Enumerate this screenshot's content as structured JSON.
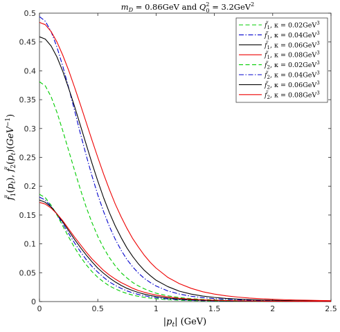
{
  "chart_data": {
    "type": "line",
    "title": "m_D = 0.86GeV and Q_0^2 = 3.2GeV^2",
    "xlabel": "|p_t| (GeV)",
    "ylabel": "f̃_1(p_t), f̃_2(p_t)(GeV^-1)",
    "xlim": [
      0,
      2.5
    ],
    "ylim": [
      0,
      0.5
    ],
    "xticks": [
      0,
      0.5,
      1,
      1.5,
      2,
      2.5
    ],
    "xtick_labels": [
      "0",
      "0.5",
      "1",
      "1.5",
      "2",
      "2.5"
    ],
    "yticks": [
      0,
      0.05,
      0.1,
      0.15,
      0.2,
      0.25,
      0.3,
      0.35,
      0.4,
      0.45,
      0.5
    ],
    "ytick_labels": [
      "0",
      "0.05",
      "0.1",
      "0.15",
      "0.2",
      "0.25",
      "0.3",
      "0.35",
      "0.4",
      "0.45",
      "0.5"
    ],
    "grid": false,
    "legend_position": "top-right",
    "x": [
      0,
      0.05,
      0.1,
      0.15,
      0.2,
      0.25,
      0.3,
      0.35,
      0.4,
      0.45,
      0.5,
      0.55,
      0.6,
      0.65,
      0.7,
      0.75,
      0.8,
      0.85,
      0.9,
      0.95,
      1.0,
      1.1,
      1.2,
      1.3,
      1.4,
      1.5,
      1.6,
      1.7,
      1.8,
      1.9,
      2.0,
      2.1,
      2.2,
      2.3,
      2.4,
      2.5
    ],
    "series": [
      {
        "name": "f̃_1, κ = 0.02GeV^3",
        "color": "#00cc00",
        "dash": "dashed",
        "values": [
          0.381,
          0.374,
          0.355,
          0.328,
          0.296,
          0.262,
          0.228,
          0.195,
          0.164,
          0.137,
          0.113,
          0.093,
          0.076,
          0.062,
          0.05,
          0.041,
          0.033,
          0.027,
          0.022,
          0.018,
          0.0145,
          0.01,
          0.007,
          0.005,
          0.0037,
          0.0028,
          0.0022,
          0.0017,
          0.0014,
          0.0011,
          0.0009,
          0.0008,
          0.0006,
          0.0005,
          0.0004,
          0.0004
        ]
      },
      {
        "name": "f̃_1, κ = 0.04GeV^3",
        "color": "#0000cc",
        "dash": "dashdot",
        "values": [
          0.494,
          0.486,
          0.468,
          0.441,
          0.408,
          0.371,
          0.332,
          0.292,
          0.254,
          0.218,
          0.185,
          0.156,
          0.13,
          0.108,
          0.089,
          0.073,
          0.06,
          0.049,
          0.04,
          0.033,
          0.027,
          0.0185,
          0.013,
          0.0093,
          0.0068,
          0.0051,
          0.0039,
          0.0031,
          0.0024,
          0.0019,
          0.0016,
          0.0013,
          0.0011,
          0.0009,
          0.0008,
          0.0007
        ]
      },
      {
        "name": "f̃_1, κ = 0.06GeV^3",
        "color": "#000000",
        "dash": "solid",
        "values": [
          0.459,
          0.455,
          0.443,
          0.424,
          0.399,
          0.37,
          0.339,
          0.306,
          0.273,
          0.24,
          0.209,
          0.18,
          0.154,
          0.131,
          0.111,
          0.093,
          0.078,
          0.065,
          0.054,
          0.045,
          0.037,
          0.026,
          0.018,
          0.013,
          0.0095,
          0.0072,
          0.0055,
          0.0043,
          0.0034,
          0.0027,
          0.0022,
          0.0018,
          0.0015,
          0.0013,
          0.0011,
          0.0009
        ]
      },
      {
        "name": "f̃_1, κ = 0.08GeV^3",
        "color": "#ee0000",
        "dash": "solid",
        "values": [
          0.484,
          0.48,
          0.468,
          0.45,
          0.427,
          0.401,
          0.372,
          0.342,
          0.311,
          0.28,
          0.25,
          0.221,
          0.194,
          0.169,
          0.147,
          0.127,
          0.109,
          0.094,
          0.08,
          0.068,
          0.058,
          0.042,
          0.031,
          0.023,
          0.017,
          0.013,
          0.01,
          0.0078,
          0.0061,
          0.0049,
          0.004,
          0.0033,
          0.0027,
          0.0023,
          0.0019,
          0.0016
        ]
      },
      {
        "name": "f̃_2, κ = 0.02GeV^3",
        "color": "#00cc00",
        "dash": "dashed",
        "values": [
          0.186,
          0.18,
          0.167,
          0.15,
          0.131,
          0.112,
          0.094,
          0.078,
          0.064,
          0.052,
          0.042,
          0.034,
          0.027,
          0.022,
          0.0175,
          0.014,
          0.0112,
          0.009,
          0.0073,
          0.006,
          0.0049,
          0.0033,
          0.0023,
          0.0016,
          0.0012,
          0.0009,
          0.0007,
          0.0005,
          0.0004,
          0.0003,
          0.0003,
          0.0002,
          0.0002,
          0.0002,
          0.0001,
          0.0001
        ]
      },
      {
        "name": "f̃_2, κ = 0.04GeV^3",
        "color": "#0000cc",
        "dash": "dashdot",
        "values": [
          0.181,
          0.176,
          0.165,
          0.151,
          0.135,
          0.118,
          0.102,
          0.087,
          0.073,
          0.061,
          0.051,
          0.042,
          0.034,
          0.028,
          0.023,
          0.0185,
          0.015,
          0.0122,
          0.01,
          0.0082,
          0.0067,
          0.0046,
          0.0032,
          0.0023,
          0.0017,
          0.0013,
          0.001,
          0.0008,
          0.0006,
          0.0005,
          0.0004,
          0.0003,
          0.0003,
          0.0002,
          0.0002,
          0.0002
        ]
      },
      {
        "name": "f̃_2, κ = 0.06GeV^3",
        "color": "#000000",
        "dash": "solid",
        "values": [
          0.176,
          0.172,
          0.164,
          0.152,
          0.138,
          0.123,
          0.108,
          0.094,
          0.081,
          0.069,
          0.058,
          0.049,
          0.041,
          0.034,
          0.028,
          0.023,
          0.019,
          0.0156,
          0.0128,
          0.0106,
          0.0088,
          0.0061,
          0.0043,
          0.0031,
          0.0023,
          0.0017,
          0.0013,
          0.001,
          0.0008,
          0.0006,
          0.0005,
          0.0004,
          0.0004,
          0.0003,
          0.0003,
          0.0002
        ]
      },
      {
        "name": "f̃_2, κ = 0.08GeV^3",
        "color": "#ee0000",
        "dash": "solid",
        "values": [
          0.172,
          0.169,
          0.162,
          0.152,
          0.14,
          0.126,
          0.112,
          0.099,
          0.086,
          0.074,
          0.064,
          0.054,
          0.046,
          0.039,
          0.033,
          0.028,
          0.023,
          0.019,
          0.016,
          0.0135,
          0.0113,
          0.008,
          0.0057,
          0.0041,
          0.003,
          0.0023,
          0.0018,
          0.0014,
          0.0011,
          0.0009,
          0.0007,
          0.0006,
          0.0005,
          0.0004,
          0.0004,
          0.0003
        ]
      }
    ]
  }
}
